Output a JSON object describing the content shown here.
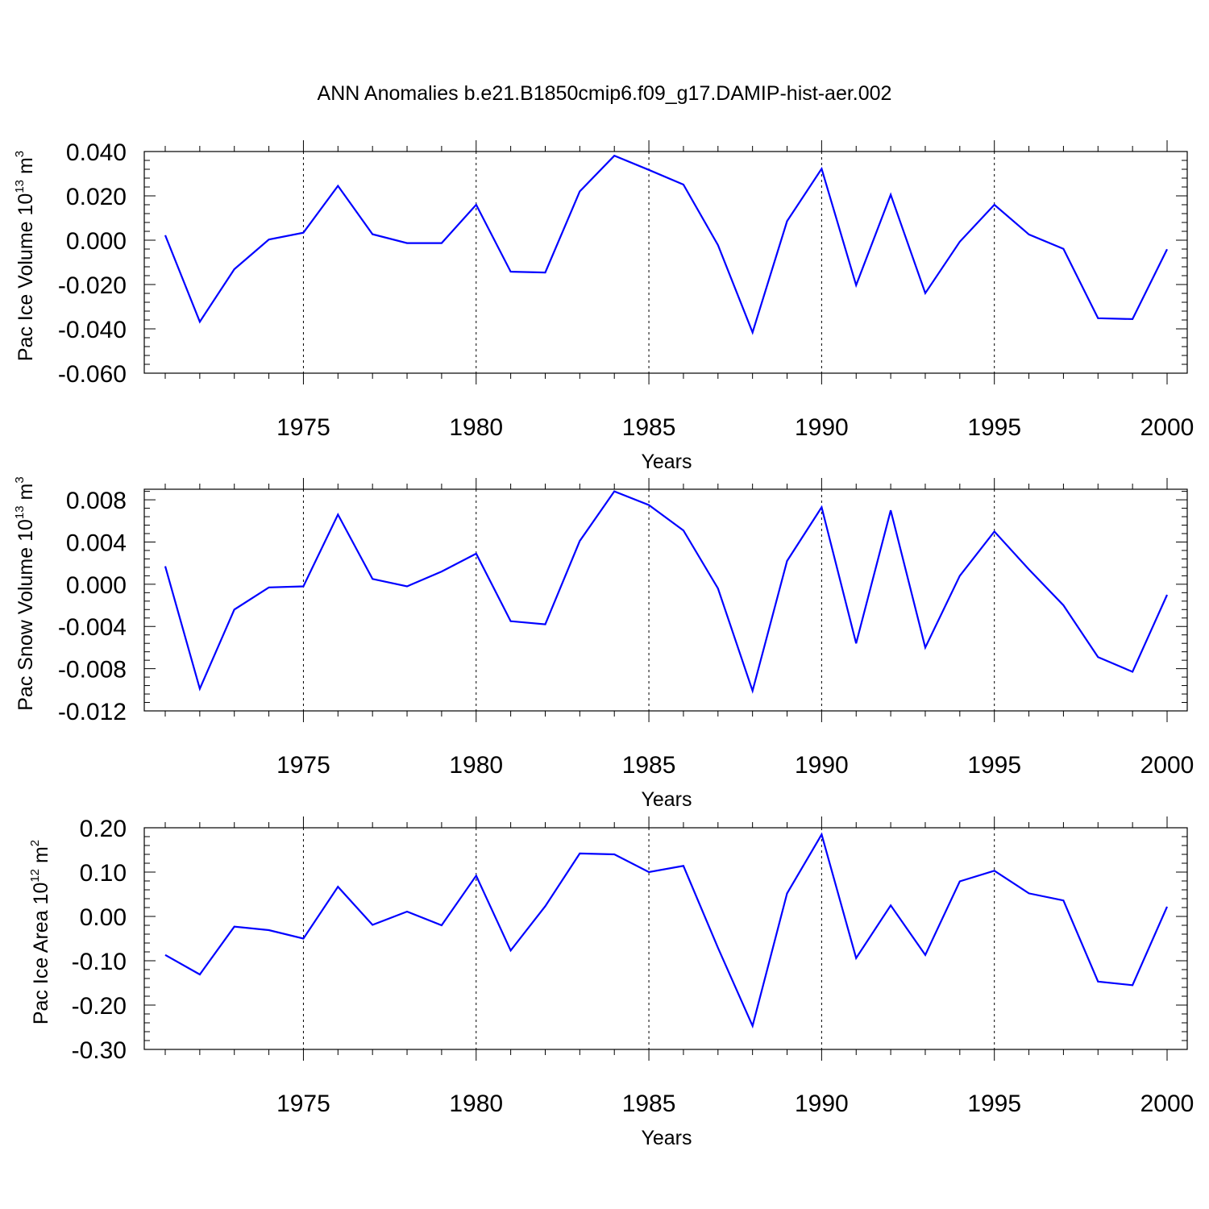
{
  "title": "ANN Anomalies b.e21.B1850cmip6.f09_g17.DAMIP-hist-aer.002",
  "colors": {
    "series": "#0000ff",
    "axes": "#000000",
    "grid": "#000000"
  },
  "chart_data": [
    {
      "type": "line",
      "ylabel": {
        "main": "Pac Ice Volume 10",
        "exp": "13",
        "mid": " m",
        "unit_exp": "3"
      },
      "xlabel": "Years",
      "xlim": [
        1971,
        2000
      ],
      "ylim": [
        -0.06,
        0.04
      ],
      "yticks": [
        0.04,
        0.02,
        0.0,
        -0.02,
        -0.04,
        -0.06
      ],
      "ytick_labels": [
        "0.040",
        "0.020",
        "0.000",
        "-0.020",
        "-0.040",
        "-0.060"
      ],
      "xticks": [
        1975,
        1980,
        1985,
        1990,
        1995,
        2000
      ],
      "xtick_labels": [
        "1975",
        "1980",
        "1985",
        "1990",
        "1995",
        "2000"
      ],
      "grid_x": [
        1975,
        1980,
        1985,
        1990,
        1995
      ],
      "x": [
        1971,
        1972,
        1973,
        1974,
        1975,
        1976,
        1977,
        1978,
        1979,
        1980,
        1981,
        1982,
        1983,
        1984,
        1985,
        1986,
        1987,
        1988,
        1989,
        1990,
        1991,
        1992,
        1993,
        1994,
        1995,
        1996,
        1997,
        1998,
        1999,
        2000
      ],
      "series": [
        {
          "values": [
            0.0022,
            -0.0368,
            -0.0131,
            0.0003,
            0.0034,
            0.0245,
            0.0027,
            -0.0013,
            -0.0013,
            0.016,
            -0.0142,
            -0.0146,
            0.022,
            0.0381,
            0.0317,
            0.0251,
            -0.0022,
            -0.0416,
            0.0086,
            0.0322,
            -0.0203,
            0.0205,
            -0.0239,
            -0.0007,
            0.016,
            0.0026,
            -0.0039,
            -0.0352,
            -0.0356,
            -0.0041
          ]
        }
      ]
    },
    {
      "type": "line",
      "ylabel": {
        "main": "Pac Snow Volume 10",
        "exp": "13",
        "mid": " m",
        "unit_exp": "3"
      },
      "xlabel": "Years",
      "xlim": [
        1971,
        2000
      ],
      "ylim": [
        -0.012,
        0.009
      ],
      "yticks": [
        0.008,
        0.004,
        0.0,
        -0.004,
        -0.008,
        -0.012
      ],
      "ytick_labels": [
        "0.008",
        "0.004",
        "0.000",
        "-0.004",
        "-0.008",
        "-0.012"
      ],
      "xticks": [
        1975,
        1980,
        1985,
        1990,
        1995,
        2000
      ],
      "xtick_labels": [
        "1975",
        "1980",
        "1985",
        "1990",
        "1995",
        "2000"
      ],
      "grid_x": [
        1975,
        1980,
        1985,
        1990,
        1995
      ],
      "x": [
        1971,
        1972,
        1973,
        1974,
        1975,
        1976,
        1977,
        1978,
        1979,
        1980,
        1981,
        1982,
        1983,
        1984,
        1985,
        1986,
        1987,
        1988,
        1989,
        1990,
        1991,
        1992,
        1993,
        1994,
        1995,
        1996,
        1997,
        1998,
        1999,
        2000
      ],
      "series": [
        {
          "values": [
            0.0017,
            -0.0099,
            -0.0024,
            -0.0003,
            -0.0002,
            0.0066,
            0.0005,
            -0.0002,
            0.0012,
            0.0029,
            -0.0035,
            -0.0038,
            0.0041,
            0.0088,
            0.0075,
            0.0051,
            -0.0004,
            -0.0101,
            0.0022,
            0.0073,
            -0.0056,
            0.007,
            -0.006,
            0.0008,
            0.005,
            0.0014,
            -0.002,
            -0.0069,
            -0.0083,
            -0.001
          ]
        }
      ]
    },
    {
      "type": "line",
      "ylabel": {
        "main": "Pac Ice Area 10",
        "exp": "12",
        "mid": " m",
        "unit_exp": "2"
      },
      "xlabel": "Years",
      "xlim": [
        1971,
        2000
      ],
      "ylim": [
        -0.3,
        0.2
      ],
      "yticks": [
        0.2,
        0.1,
        0.0,
        -0.1,
        -0.2,
        -0.3
      ],
      "ytick_labels": [
        "0.20",
        "0.10",
        "0.00",
        "-0.10",
        "-0.20",
        "-0.30"
      ],
      "xticks": [
        1975,
        1980,
        1985,
        1990,
        1995,
        2000
      ],
      "xtick_labels": [
        "1975",
        "1980",
        "1985",
        "1990",
        "1995",
        "2000"
      ],
      "grid_x": [
        1975,
        1980,
        1985,
        1990,
        1995
      ],
      "x": [
        1971,
        1972,
        1973,
        1974,
        1975,
        1976,
        1977,
        1978,
        1979,
        1980,
        1981,
        1982,
        1983,
        1984,
        1985,
        1986,
        1987,
        1988,
        1989,
        1990,
        1991,
        1992,
        1993,
        1994,
        1995,
        1996,
        1997,
        1998,
        1999,
        2000
      ],
      "series": [
        {
          "values": [
            -0.087,
            -0.131,
            -0.023,
            -0.031,
            -0.05,
            0.067,
            -0.019,
            0.011,
            -0.02,
            0.092,
            -0.077,
            0.023,
            0.142,
            0.14,
            0.1,
            0.114,
            -0.071,
            -0.247,
            0.052,
            0.185,
            -0.094,
            0.025,
            -0.087,
            0.079,
            0.103,
            0.052,
            0.036,
            -0.147,
            -0.155,
            0.022
          ]
        }
      ]
    }
  ]
}
